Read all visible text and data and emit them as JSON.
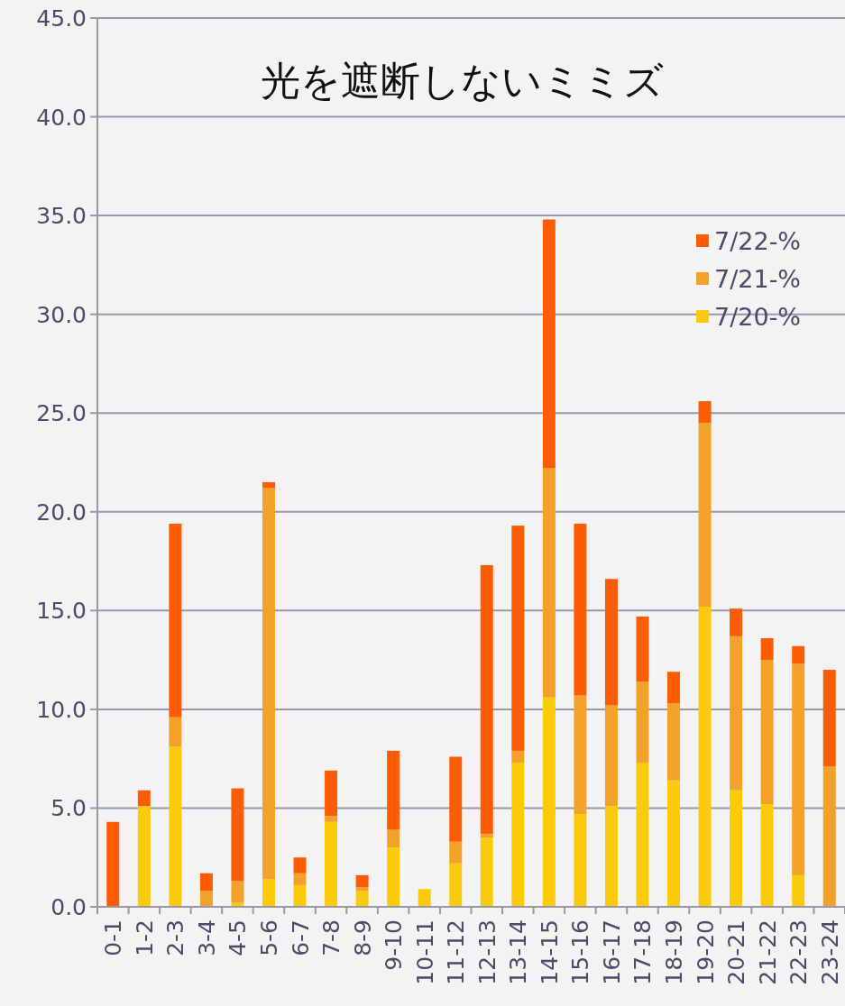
{
  "chart_data": {
    "type": "bar",
    "title": "光を遮断しないミミズ",
    "stacked": true,
    "grid": "y",
    "legend": "top right",
    "categories": [
      "0-1",
      "1-2",
      "2-3",
      "3-4",
      "4-5",
      "5-6",
      "6-7",
      "7-8",
      "8-9",
      "9-10",
      "10-11",
      "11-12",
      "12-13",
      "13-14",
      "14-15",
      "15-16",
      "16-17",
      "17-18",
      "18-19",
      "19-20",
      "20-21",
      "21-22",
      "22-23",
      "23-24"
    ],
    "ylim": [
      0,
      45
    ],
    "yticks": [
      {
        "value": 0,
        "label": "0.0"
      },
      {
        "value": 5,
        "label": "5.0"
      },
      {
        "value": 10,
        "label": "10.0"
      },
      {
        "value": 15,
        "label": "15.0"
      },
      {
        "value": 20,
        "label": "20.0"
      },
      {
        "value": 25,
        "label": "25.0"
      },
      {
        "value": 30,
        "label": "30.0"
      },
      {
        "value": 35,
        "label": "35.0"
      },
      {
        "value": 40,
        "label": "40.0"
      },
      {
        "value": 45,
        "label": "45.0"
      }
    ],
    "series": [
      {
        "name": "7/20-%",
        "color": "#f9cb0a",
        "values": [
          0,
          5.1,
          8.1,
          0,
          0.2,
          1.4,
          1.1,
          4.3,
          0.8,
          3.0,
          0.9,
          2.2,
          3.5,
          7.3,
          10.6,
          4.7,
          5.1,
          7.3,
          6.4,
          15.2,
          5.9,
          5.2,
          1.6,
          0
        ]
      },
      {
        "name": "7/21-%",
        "color": "#f4a12a",
        "values": [
          0,
          0,
          1.5,
          0.8,
          1.1,
          19.8,
          0.6,
          0.3,
          0.2,
          0.9,
          0,
          1.1,
          0.2,
          0.6,
          11.6,
          6.0,
          5.1,
          4.1,
          3.9,
          9.3,
          7.8,
          7.3,
          10.7,
          7.1
        ]
      },
      {
        "name": "7/22-%",
        "color": "#fb5c05",
        "values": [
          4.3,
          0.8,
          9.8,
          0.9,
          4.7,
          0.3,
          0.8,
          2.3,
          0.6,
          4.0,
          0,
          4.3,
          13.6,
          11.4,
          12.6,
          8.7,
          6.4,
          3.3,
          1.6,
          1.1,
          1.4,
          1.1,
          0.9,
          4.9
        ]
      }
    ]
  }
}
